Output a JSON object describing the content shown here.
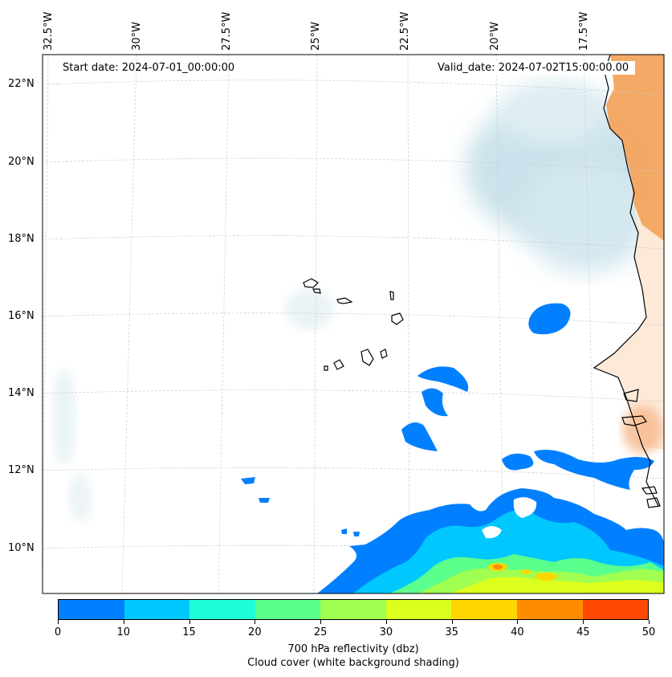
{
  "map": {
    "start_date": "Start date: 2024-07-01_00:00:00",
    "valid_date": "Valid_date: 2024-07-02T15:00:00.00",
    "lon_labels": [
      "32.5°W",
      "30°W",
      "27.5°W",
      "25°W",
      "22.5°W",
      "20°W",
      "17.5°W"
    ],
    "lat_labels": [
      "22°N",
      "20°N",
      "18°N",
      "16°N",
      "14°N",
      "12°N",
      "10°N"
    ],
    "land_color": "#f4a45e",
    "cloud_color": "#c9e2ea"
  },
  "colorbar": {
    "ticks": [
      "0",
      "10",
      "15",
      "20",
      "25",
      "30",
      "35",
      "40",
      "45",
      "50"
    ],
    "colors": [
      "#0080ff",
      "#00c8ff",
      "#1effd8",
      "#5aff8c",
      "#a0ff50",
      "#dcff1e",
      "#ffd600",
      "#ff8c00",
      "#ff4800"
    ],
    "label_line1": "700 hPa reflectivity (dbz)",
    "label_line2": "Cloud cover (white background shading)"
  }
}
